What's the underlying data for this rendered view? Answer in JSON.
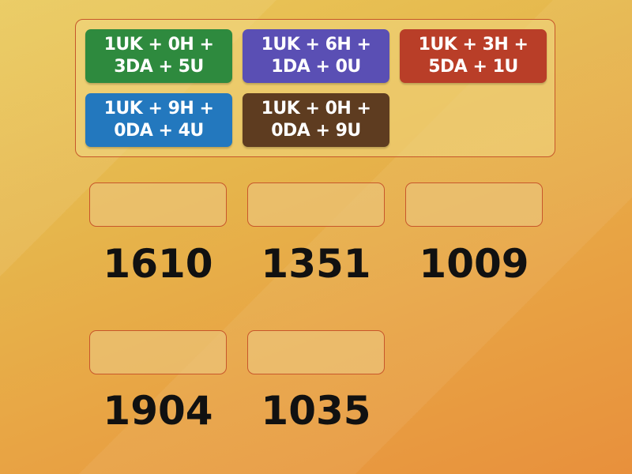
{
  "tiles": [
    {
      "label": "1UK + 0H + 3DA + 5U",
      "color": "#2e8a3e"
    },
    {
      "label": "1UK + 6H + 1DA + 0U",
      "color": "#5a4fb4"
    },
    {
      "label": "1UK + 3H + 5DA + 1U",
      "color": "#b93e28"
    },
    {
      "label": "1UK + 9H + 0DA + 4U",
      "color": "#2378be"
    },
    {
      "label": "1UK + 0H + 0DA + 9U",
      "color": "#5e3c20"
    }
  ],
  "targets": [
    {
      "label": "1610"
    },
    {
      "label": "1351"
    },
    {
      "label": "1009"
    },
    {
      "label": "1904"
    },
    {
      "label": "1035"
    }
  ]
}
